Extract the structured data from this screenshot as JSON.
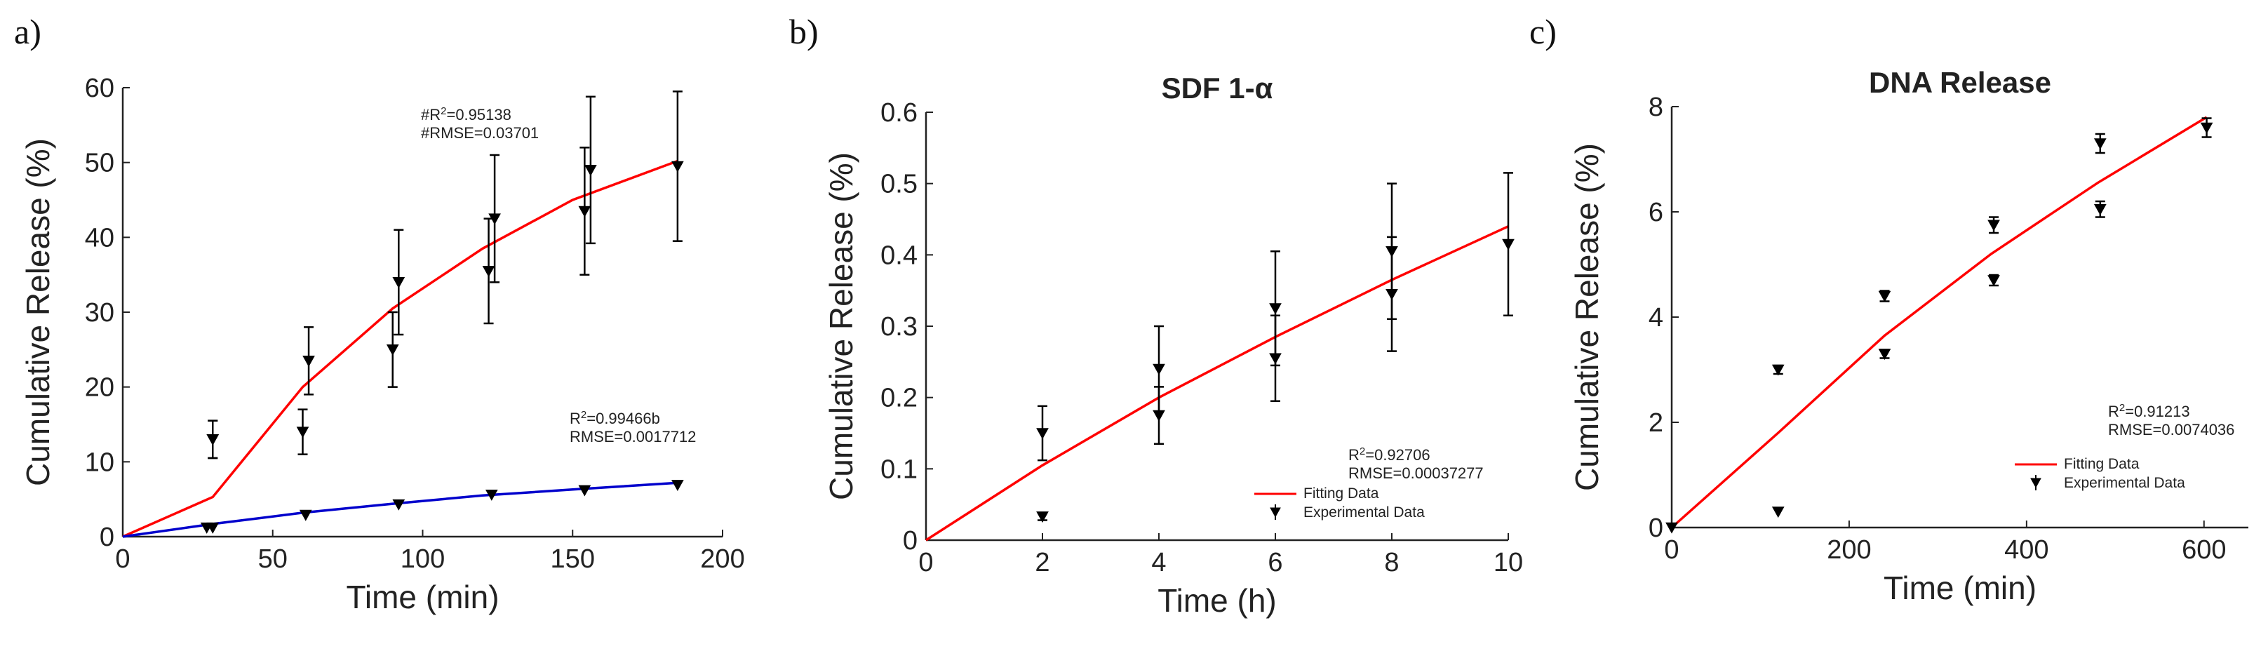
{
  "figure": {
    "panels": [
      "a)",
      "b)",
      "c)"
    ]
  },
  "chart_data": [
    {
      "type": "scatter",
      "panel": "a)",
      "title": "",
      "xlabel": "Time (min)",
      "ylabel": "Cumulative Release (%)",
      "xlim": [
        0,
        200
      ],
      "ylim": [
        0,
        60
      ],
      "xticks": [
        0,
        50,
        100,
        150,
        200
      ],
      "yticks": [
        0,
        10,
        20,
        30,
        40,
        50,
        60
      ],
      "grid": false,
      "annotations": [
        {
          "name": "a-r2-red",
          "lines": [
            "#R2=0.95138",
            "#RMSE=0.03701"
          ],
          "anchor": [
            100,
            55
          ]
        },
        {
          "name": "a-r2-blue",
          "lines": [
            "R2=0.99466b",
            "RMSE=0.0017712"
          ],
          "anchor": [
            150,
            13
          ]
        }
      ],
      "series": [
        {
          "name": "Experimental (#)",
          "kind": "errorbar",
          "color": "#000000",
          "x": [
            30,
            30,
            60,
            62,
            90,
            92,
            122,
            124,
            154,
            156,
            185
          ],
          "y": [
            13,
            13,
            14,
            23.5,
            25,
            34,
            35.5,
            42.5,
            43.5,
            49,
            49.5
          ],
          "err": [
            2.5,
            2.5,
            3,
            4.5,
            5,
            7,
            7,
            8.5,
            8.5,
            9.8,
            10
          ]
        },
        {
          "name": "Fit (#)",
          "kind": "line",
          "color": "#ff0000",
          "x": [
            0,
            30,
            60,
            90,
            120,
            150,
            185
          ],
          "y": [
            0,
            5.3,
            20,
            30.5,
            38.5,
            45,
            50.2
          ]
        },
        {
          "name": "Experimental (b)",
          "kind": "marker",
          "color": "#0000cc",
          "x": [
            28,
            30,
            61,
            92,
            123,
            154,
            185
          ],
          "y": [
            1.2,
            1.2,
            2.9,
            4.3,
            5.6,
            6.2,
            6.9
          ]
        },
        {
          "name": "Fit (b)",
          "kind": "line",
          "color": "#0000cc",
          "x": [
            0,
            30,
            60,
            90,
            120,
            150,
            185
          ],
          "y": [
            0,
            1.7,
            3.2,
            4.4,
            5.5,
            6.3,
            7.2
          ]
        }
      ]
    },
    {
      "type": "scatter",
      "panel": "b)",
      "title": "SDF 1-α",
      "xlabel": "Time (h)",
      "ylabel": "Cumulative Release (%)",
      "xlim": [
        0,
        10
      ],
      "ylim": [
        0,
        0.6
      ],
      "xticks": [
        0,
        2,
        4,
        6,
        8,
        10
      ],
      "yticks": [
        0,
        0.1,
        0.2,
        0.3,
        0.4,
        0.5,
        0.6
      ],
      "grid": false,
      "annotations": [
        {
          "name": "b-r2",
          "lines": [
            "R2=0.92706",
            "RMSE=0.00037277"
          ]
        }
      ],
      "legend": {
        "position": "bottom-right",
        "entries": [
          "Fitting Data",
          "Experimental Data"
        ]
      },
      "series": [
        {
          "name": "Experimental Data",
          "kind": "errorbar",
          "color": "#000000",
          "x": [
            2,
            2,
            4,
            4,
            6,
            6,
            8,
            8,
            10
          ],
          "y": [
            0.033,
            0.15,
            0.175,
            0.24,
            0.255,
            0.325,
            0.345,
            0.405,
            0.415
          ],
          "err": [
            0.005,
            0.038,
            0.04,
            0.06,
            0.06,
            0.08,
            0.08,
            0.095,
            0.1
          ]
        },
        {
          "name": "Fitting Data",
          "kind": "line",
          "color": "#ff0000",
          "x": [
            0,
            2,
            4,
            6,
            8,
            10
          ],
          "y": [
            0,
            0.105,
            0.2,
            0.285,
            0.365,
            0.44
          ]
        }
      ]
    },
    {
      "type": "scatter",
      "panel": "c)",
      "title": "DNA Release",
      "xlabel": "Time (min)",
      "ylabel": "Cumulative Release (%)",
      "xlim": [
        0,
        650
      ],
      "ylim": [
        0,
        8
      ],
      "xticks": [
        0,
        200,
        400,
        600
      ],
      "yticks": [
        0,
        2,
        4,
        6,
        8
      ],
      "grid": false,
      "annotations": [
        {
          "name": "c-r2",
          "lines": [
            "R2=0.91213",
            "RMSE=0.0074036"
          ]
        }
      ],
      "legend": {
        "position": "bottom-right",
        "entries": [
          "Fitting Data",
          "Experimental Data"
        ]
      },
      "series": [
        {
          "name": "Experimental Data",
          "kind": "errorbar",
          "color": "#000000",
          "x": [
            0,
            120,
            120,
            240,
            240,
            363,
            363,
            483,
            483,
            603
          ],
          "y": [
            0,
            0.3,
            3,
            3.3,
            4.4,
            4.7,
            5.75,
            6.05,
            7.3,
            7.6
          ],
          "err": [
            0,
            0,
            0.08,
            0.08,
            0.1,
            0.1,
            0.15,
            0.15,
            0.18,
            0.18
          ]
        },
        {
          "name": "Fitting Data",
          "kind": "line",
          "color": "#ff0000",
          "x": [
            0,
            120,
            240,
            360,
            480,
            603
          ],
          "y": [
            0,
            1.8,
            3.65,
            5.2,
            6.55,
            7.8
          ]
        }
      ]
    }
  ]
}
